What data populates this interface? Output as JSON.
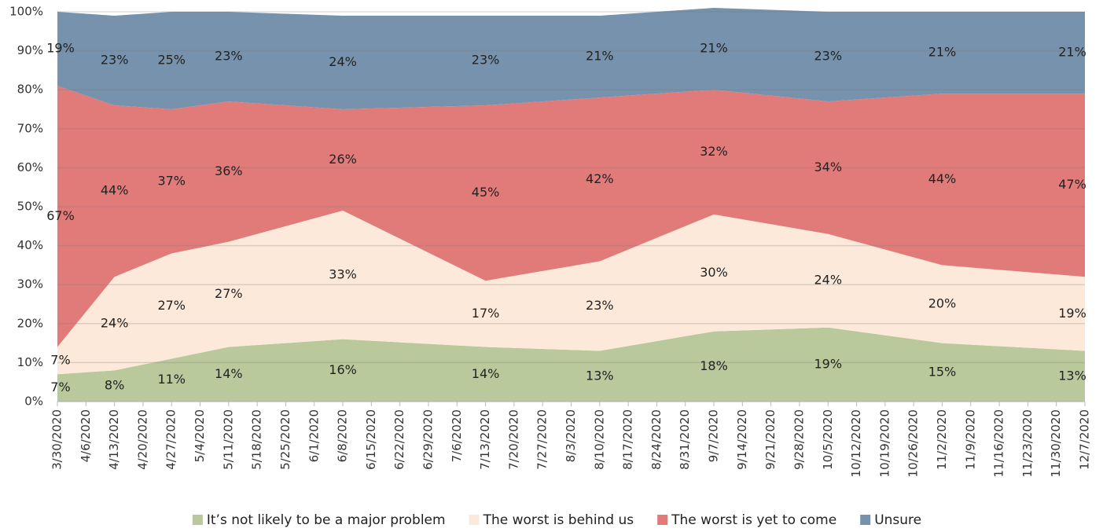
{
  "chart_data": {
    "type": "stacked_area",
    "x": [
      "3/30/2020",
      "4/13/2020",
      "4/27/2020",
      "5/11/2020",
      "6/8/2020",
      "7/13/2020",
      "8/10/2020",
      "9/7/2020",
      "10/5/2020",
      "11/2/2020",
      "12/7/2020"
    ],
    "xticks": [
      "3/30/2020",
      "4/6/2020",
      "4/13/2020",
      "4/20/2020",
      "4/27/2020",
      "5/4/2020",
      "5/11/2020",
      "5/18/2020",
      "5/25/2020",
      "6/1/2020",
      "6/8/2020",
      "6/15/2020",
      "6/22/2020",
      "6/29/2020",
      "7/6/2020",
      "7/13/2020",
      "7/20/2020",
      "7/27/2020",
      "8/3/2020",
      "8/10/2020",
      "8/17/2020",
      "8/24/2020",
      "8/31/2020",
      "9/7/2020",
      "9/14/2020",
      "9/21/2020",
      "9/28/2020",
      "10/5/2020",
      "10/12/2020",
      "10/19/2020",
      "10/26/2020",
      "11/2/2020",
      "11/9/2020",
      "11/16/2020",
      "11/23/2020",
      "11/30/2020",
      "12/7/2020"
    ],
    "series": [
      {
        "name": "It’s not likely to be a major problem",
        "color": "#b9c99b",
        "values": [
          7,
          8,
          11,
          14,
          16,
          14,
          13,
          18,
          19,
          15,
          13
        ],
        "value_labels": [
          "7%",
          "8%",
          "11%",
          "14%",
          "16%",
          "14%",
          "13%",
          "18%",
          "19%",
          "15%",
          "13%"
        ]
      },
      {
        "name": "The worst is behind us",
        "color": "#fde9d9",
        "values": [
          7,
          24,
          27,
          27,
          33,
          17,
          23,
          30,
          24,
          20,
          19
        ],
        "value_labels": [
          "7%",
          "24%",
          "27%",
          "27%",
          "33%",
          "17%",
          "23%",
          "30%",
          "24%",
          "20%",
          "19%"
        ]
      },
      {
        "name": "The worst is yet to come",
        "color": "#e07b7a",
        "values": [
          67,
          44,
          37,
          36,
          26,
          45,
          42,
          32,
          34,
          44,
          47
        ],
        "value_labels": [
          "67%",
          "44%",
          "37%",
          "36%",
          "26%",
          "45%",
          "42%",
          "32%",
          "34%",
          "44%",
          "47%"
        ]
      },
      {
        "name": "Unsure",
        "color": "#7692ad",
        "values": [
          19,
          23,
          25,
          23,
          24,
          23,
          21,
          21,
          23,
          21,
          21
        ],
        "value_labels": [
          "19%",
          "23%",
          "25%",
          "23%",
          "24%",
          "23%",
          "21%",
          "21%",
          "23%",
          "21%",
          "21%"
        ]
      }
    ],
    "ylim": [
      0,
      100
    ],
    "yticks": [
      {
        "value": 0,
        "label": "0%"
      },
      {
        "value": 10,
        "label": "10%"
      },
      {
        "value": 20,
        "label": "20%"
      },
      {
        "value": 30,
        "label": "30%"
      },
      {
        "value": 40,
        "label": "40%"
      },
      {
        "value": 50,
        "label": "50%"
      },
      {
        "value": 60,
        "label": "60%"
      },
      {
        "value": 70,
        "label": "70%"
      },
      {
        "value": 80,
        "label": "80%"
      },
      {
        "value": 90,
        "label": "90%"
      },
      {
        "value": 100,
        "label": "100%"
      }
    ],
    "grid": true,
    "legend": "bottom"
  }
}
